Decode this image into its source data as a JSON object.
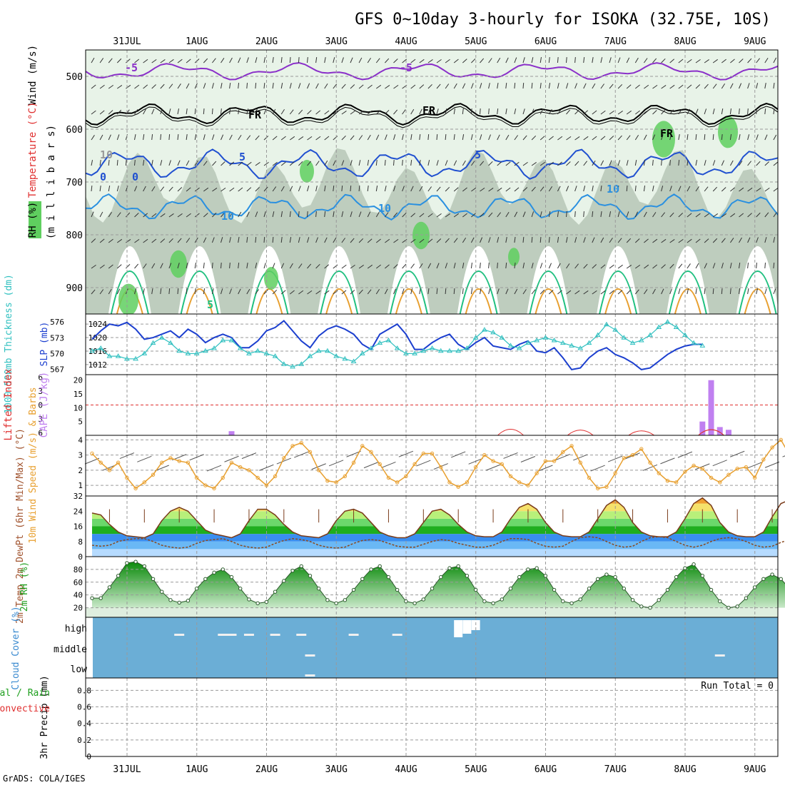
{
  "title": "GFS 0~10day 3-hourly for ISOKA (32.75E, 10S)",
  "credit": "GrADS: COLA/IGES",
  "dates": [
    "31JUL",
    "1AUG",
    "2AUG",
    "3AUG",
    "4AUG",
    "5AUG",
    "6AUG",
    "7AUG",
    "8AUG",
    "9AUG"
  ],
  "colors": {
    "grid": "#9a9a9a",
    "rh_light": "#e8f3e8",
    "rh_mid": "#b9c9b9",
    "rh_dark": "#7e957e",
    "rh_green": "#5fcf5f",
    "t_purple": "#8a2fc9",
    "t_black": "#000000",
    "t_blue": "#2050d0",
    "t_lightblue": "#2a90e0",
    "t_green": "#20c080",
    "t_orange": "#e8a030",
    "slp": "#1c3fcf",
    "thick": "#30c0c0",
    "cape": "#c080f0",
    "li": "#e03030",
    "wind10": "#e8a030",
    "cloud": "#6baed6"
  },
  "chart_data": [
    {
      "type": "contour",
      "panel": "upper-air",
      "ylabel_parts": [
        "Wind (m/s)",
        "Temperature (°C)",
        "RH (%)"
      ],
      "axis_title": "(m i l l i b a r s)",
      "yticks": [
        500,
        600,
        700,
        800,
        900
      ],
      "contour_labels": [
        "-5",
        "-5",
        "FR",
        "FR",
        "FR",
        "5",
        "5",
        "0",
        "0",
        "10",
        "10",
        "10",
        "10",
        "5"
      ]
    },
    {
      "type": "line",
      "panel": "slp-thickness",
      "ylabel_left": "1000-500mb Thickness (dm)",
      "ylabel_right": "SLP (mb)",
      "left_ticks": [
        567,
        570,
        573,
        576
      ],
      "right_ticks": [
        1012,
        1016,
        1020,
        1024
      ],
      "slp": [
        1019.5,
        1022,
        1024,
        1023.5,
        1024.5,
        1022.5,
        1019.5,
        1020,
        1021,
        1022,
        1020,
        1022.5,
        1021,
        1018.5,
        1020,
        1021,
        1020,
        1017,
        1017,
        1019,
        1022,
        1023,
        1025,
        1022,
        1019,
        1017,
        1020.5,
        1022.5,
        1023.5,
        1022.5,
        1021,
        1018,
        1016.5,
        1021,
        1022.5,
        1024,
        1021,
        1016.5,
        1016.5,
        1018.5,
        1020,
        1021,
        1018,
        1016.5,
        1018.5,
        1020,
        1017.5,
        1017,
        1016.5,
        1018,
        1019,
        1016,
        1015.5,
        1017,
        1014,
        1010.5,
        1011,
        1014,
        1016,
        1017,
        1015,
        1014,
        1012.5,
        1010.5,
        1011,
        1013,
        1015,
        1016.5,
        1017.5,
        1018,
        1018
      ],
      "thickness": [
        570.5,
        571,
        569.5,
        569.5,
        569,
        569,
        570,
        572,
        573,
        572,
        570.5,
        570,
        570,
        570.5,
        571,
        572.5,
        572.5,
        571,
        570,
        570.5,
        570,
        569.5,
        568,
        567.5,
        568,
        569.5,
        570.5,
        570.5,
        569.5,
        569,
        568.5,
        570,
        571,
        572,
        572.5,
        571,
        570,
        570,
        570.5,
        571,
        570.5,
        570.5,
        570.5,
        571,
        573,
        574.5,
        574,
        573,
        571.5,
        571,
        572,
        572.5,
        573,
        572.5,
        572,
        571.5,
        571,
        572,
        573.5,
        575.5,
        574.5,
        573,
        572,
        572.5,
        573.5,
        575,
        576,
        575,
        573.5,
        572,
        571.5
      ]
    },
    {
      "type": "bar+line",
      "panel": "cape-li",
      "ylabel_left": "Lifted Index",
      "ylabel_right": "CAPE (J/kg)",
      "left_ticks": [
        6,
        3,
        0,
        -3,
        -6
      ],
      "right_ticks": [
        5,
        10,
        15,
        20
      ],
      "cape_bars": [
        {
          "x": 16,
          "value": 1.5
        },
        {
          "x": 70,
          "value": 5
        },
        {
          "x": 71,
          "value": 20
        },
        {
          "x": 72,
          "value": 3
        },
        {
          "x": 73,
          "value": 2
        }
      ],
      "li_bumps": [
        {
          "x": 48,
          "value": 5
        },
        {
          "x": 56,
          "value": 4
        },
        {
          "x": 63,
          "value": 3
        },
        {
          "x": 71,
          "value": 4.5
        }
      ]
    },
    {
      "type": "line",
      "panel": "wind-10m",
      "ylabel": "10m Wind Speed (m/s) & Barbs",
      "yticks": [
        1,
        2,
        3,
        4
      ],
      "speed": [
        3.1,
        2.5,
        2,
        2.5,
        1.5,
        0.8,
        1.2,
        1.7,
        2.5,
        2.8,
        2.6,
        2.5,
        1.5,
        1,
        0.8,
        1.5,
        2.5,
        2.2,
        2,
        1.5,
        1,
        1.6,
        2.8,
        3.6,
        3.8,
        3.2,
        2,
        1.3,
        1.2,
        1.6,
        2.5,
        3.6,
        3.2,
        2.4,
        1.5,
        1.2,
        1.6,
        2.4,
        3.1,
        3.1,
        2.2,
        1.2,
        0.9,
        1.2,
        2.2,
        3,
        2.6,
        2.4,
        1.6,
        1.2,
        1,
        1.8,
        2.6,
        2.6,
        3.2,
        3.6,
        2.5,
        1.5,
        0.8,
        0.9,
        1.8,
        2.8,
        3,
        3.4,
        2.5,
        1.8,
        1.3,
        1.2,
        1.9,
        2.3,
        2.1,
        1.5,
        1.2,
        1.7,
        2.1,
        2.2,
        1.5,
        2.7,
        3.5,
        4,
        3,
        1.6,
        0.7,
        1,
        1.8,
        2.1
      ]
    },
    {
      "type": "area",
      "panel": "temperature",
      "ylabel": "2m Temp 2m DewPt (6hr Min/Max) (°C)",
      "yticks": [
        0,
        8,
        16,
        24,
        32
      ],
      "temp": [
        23,
        22,
        17,
        13,
        11,
        10.5,
        10,
        12,
        19,
        24,
        26,
        24,
        19,
        14,
        12,
        11,
        10,
        12,
        19,
        25,
        25,
        22,
        17,
        13,
        11,
        10.5,
        10,
        12,
        19,
        24,
        25,
        23,
        18,
        13,
        11,
        10,
        10,
        12,
        18,
        24,
        25,
        22,
        17,
        13,
        11,
        10.5,
        10.5,
        13,
        20,
        26,
        28,
        25,
        18,
        13,
        11,
        10.5,
        10.5,
        13,
        20,
        27,
        30,
        26,
        18,
        13,
        11,
        10.5,
        10.5,
        13,
        20,
        28,
        31,
        27,
        18,
        13,
        11,
        10.5,
        10.5,
        13,
        21,
        28,
        30,
        26,
        18,
        14,
        12,
        19
      ],
      "dewpt": [
        6,
        5.5,
        6,
        8,
        9,
        9.5,
        9.5,
        8,
        6,
        5,
        4.5,
        5,
        7,
        8.5,
        9,
        9.5,
        8,
        6,
        5,
        4.5,
        5,
        7,
        8.5,
        9.5,
        9,
        8,
        6,
        5,
        4.5,
        5,
        7,
        8.5,
        9,
        8.5,
        7,
        5.5,
        5,
        5,
        6.5,
        8,
        9,
        8.5,
        7,
        6,
        5,
        5,
        6,
        8,
        9.5,
        9.5,
        9,
        7,
        5.5,
        5,
        5.5,
        8,
        10,
        10.5,
        10,
        8,
        6,
        5,
        5.5,
        8,
        10,
        10.5,
        10,
        8,
        6,
        5,
        6,
        8,
        9.5,
        10,
        9.5,
        8,
        6,
        5,
        5.5,
        7.5,
        9,
        9.5,
        9.5,
        9,
        9,
        9
      ]
    },
    {
      "type": "area",
      "panel": "relative-humidity",
      "ylabel": "2m RH (%)",
      "yticks": [
        20,
        40,
        60,
        80
      ],
      "rh": [
        35,
        35,
        52,
        70,
        90,
        92,
        85,
        65,
        45,
        32,
        28,
        31,
        50,
        65,
        75,
        80,
        68,
        50,
        33,
        27,
        29,
        45,
        62,
        78,
        85,
        70,
        50,
        32,
        27,
        32,
        48,
        65,
        80,
        85,
        68,
        48,
        30,
        27,
        33,
        50,
        68,
        82,
        85,
        70,
        48,
        30,
        27,
        33,
        50,
        68,
        80,
        82,
        70,
        48,
        30,
        27,
        33,
        50,
        65,
        72,
        68,
        50,
        32,
        22,
        20,
        32,
        48,
        68,
        82,
        88,
        70,
        48,
        30,
        20,
        22,
        35,
        52,
        65,
        72,
        65,
        50,
        32,
        20,
        23,
        40,
        55,
        70,
        68,
        50
      ]
    },
    {
      "type": "heatmap",
      "panel": "cloud-cover",
      "ylabel": "Cloud Cover (%)",
      "row_labels": [
        "high",
        "middle",
        "low"
      ],
      "clear_cells": [
        {
          "row": "high",
          "x": 10
        },
        {
          "row": "high",
          "x": 15
        },
        {
          "row": "high",
          "x": 16
        },
        {
          "row": "high",
          "x": 18
        },
        {
          "row": "high",
          "x": 21
        },
        {
          "row": "high",
          "x": 24
        },
        {
          "row": "high",
          "x": 30
        },
        {
          "row": "high",
          "x": 35
        },
        {
          "row": "middle",
          "x": 25
        },
        {
          "row": "low",
          "x": 25
        },
        {
          "row": "middle",
          "x": 72
        }
      ],
      "overcast_cells": [
        {
          "row": "high",
          "x": 42
        },
        {
          "row": "high",
          "x": 43
        },
        {
          "row": "high",
          "x": 44
        }
      ]
    },
    {
      "type": "bar",
      "panel": "precipitation",
      "ylabel": "3hr Precip (mm)",
      "legend": [
        "Total / Rain",
        "Convective"
      ],
      "yticks": [
        0,
        0.2,
        0.4,
        0.6,
        0.8
      ],
      "ylim": [
        0,
        0.95
      ],
      "run_total_label": "Run Total = 0",
      "values": []
    }
  ]
}
